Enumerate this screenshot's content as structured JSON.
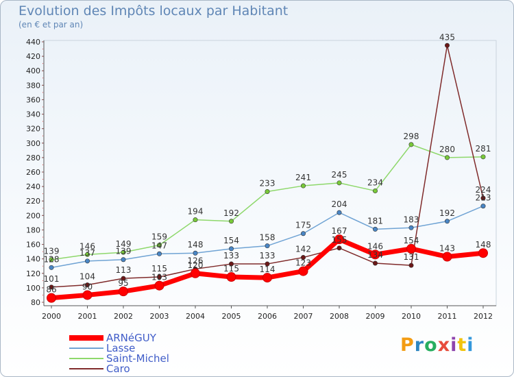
{
  "header": {
    "title": "Evolution des Impôts locaux par Habitant",
    "subtitle": "(en € et par an)"
  },
  "logo": {
    "text": "Proxiti",
    "colors": [
      "#f39c12",
      "#2e86c1",
      "#27ae60",
      "#e74c3c",
      "#8e44ad",
      "#f1c40f",
      "#3498db"
    ]
  },
  "chart_data": {
    "type": "line",
    "title": "Evolution des Impôts locaux par Habitant",
    "subtitle": "(en € et par an)",
    "categories": [
      "2000",
      "2001",
      "2002",
      "2003",
      "2004",
      "2005",
      "2006",
      "2007",
      "2008",
      "2009",
      "2010",
      "2011",
      "2012"
    ],
    "ylim": [
      80,
      440
    ],
    "yticks": [
      80,
      100,
      120,
      140,
      160,
      180,
      200,
      220,
      240,
      260,
      280,
      300,
      320,
      340,
      360,
      380,
      400,
      420,
      440
    ],
    "grid": false,
    "legend_position": "bottom-left",
    "series": [
      {
        "name": "ARNéGUY",
        "color": "#ff0000",
        "width": 7,
        "values": [
          86,
          90,
          95,
          103,
          120,
          115,
          114,
          123,
          167,
          146,
          154,
          143,
          148
        ],
        "labels": [
          "86",
          "90",
          "95",
          "103",
          "120",
          "115",
          "114",
          "123",
          "167",
          "146",
          "154",
          "143",
          "148"
        ]
      },
      {
        "name": "Lasse",
        "color": "#6fa3d4",
        "width": 1.5,
        "values": [
          128,
          137,
          139,
          147,
          148,
          154,
          158,
          175,
          204,
          181,
          183,
          192,
          213
        ],
        "labels": [
          "128",
          "137",
          "139",
          "147",
          "148",
          "154",
          "158",
          "175",
          "204",
          "181",
          "183",
          "192",
          "213"
        ]
      },
      {
        "name": "Saint-Michel",
        "color": "#8ed86b",
        "width": 1.5,
        "values": [
          139,
          146,
          149,
          159,
          194,
          192,
          233,
          241,
          245,
          234,
          298,
          280,
          281
        ],
        "labels": [
          "139",
          "146",
          "149",
          "159",
          "194",
          "192",
          "233",
          "241",
          "245",
          "234",
          "298",
          "280",
          "281"
        ]
      },
      {
        "name": "Caro",
        "color": "#7f2a2a",
        "width": 1.5,
        "values": [
          101,
          104,
          113,
          115,
          126,
          133,
          133,
          142,
          155,
          134,
          131,
          435,
          224
        ],
        "labels": [
          "101",
          "104",
          "113",
          "115",
          "126",
          "133",
          "133",
          "142",
          "155",
          "134",
          "131",
          "435",
          "224"
        ]
      }
    ]
  }
}
